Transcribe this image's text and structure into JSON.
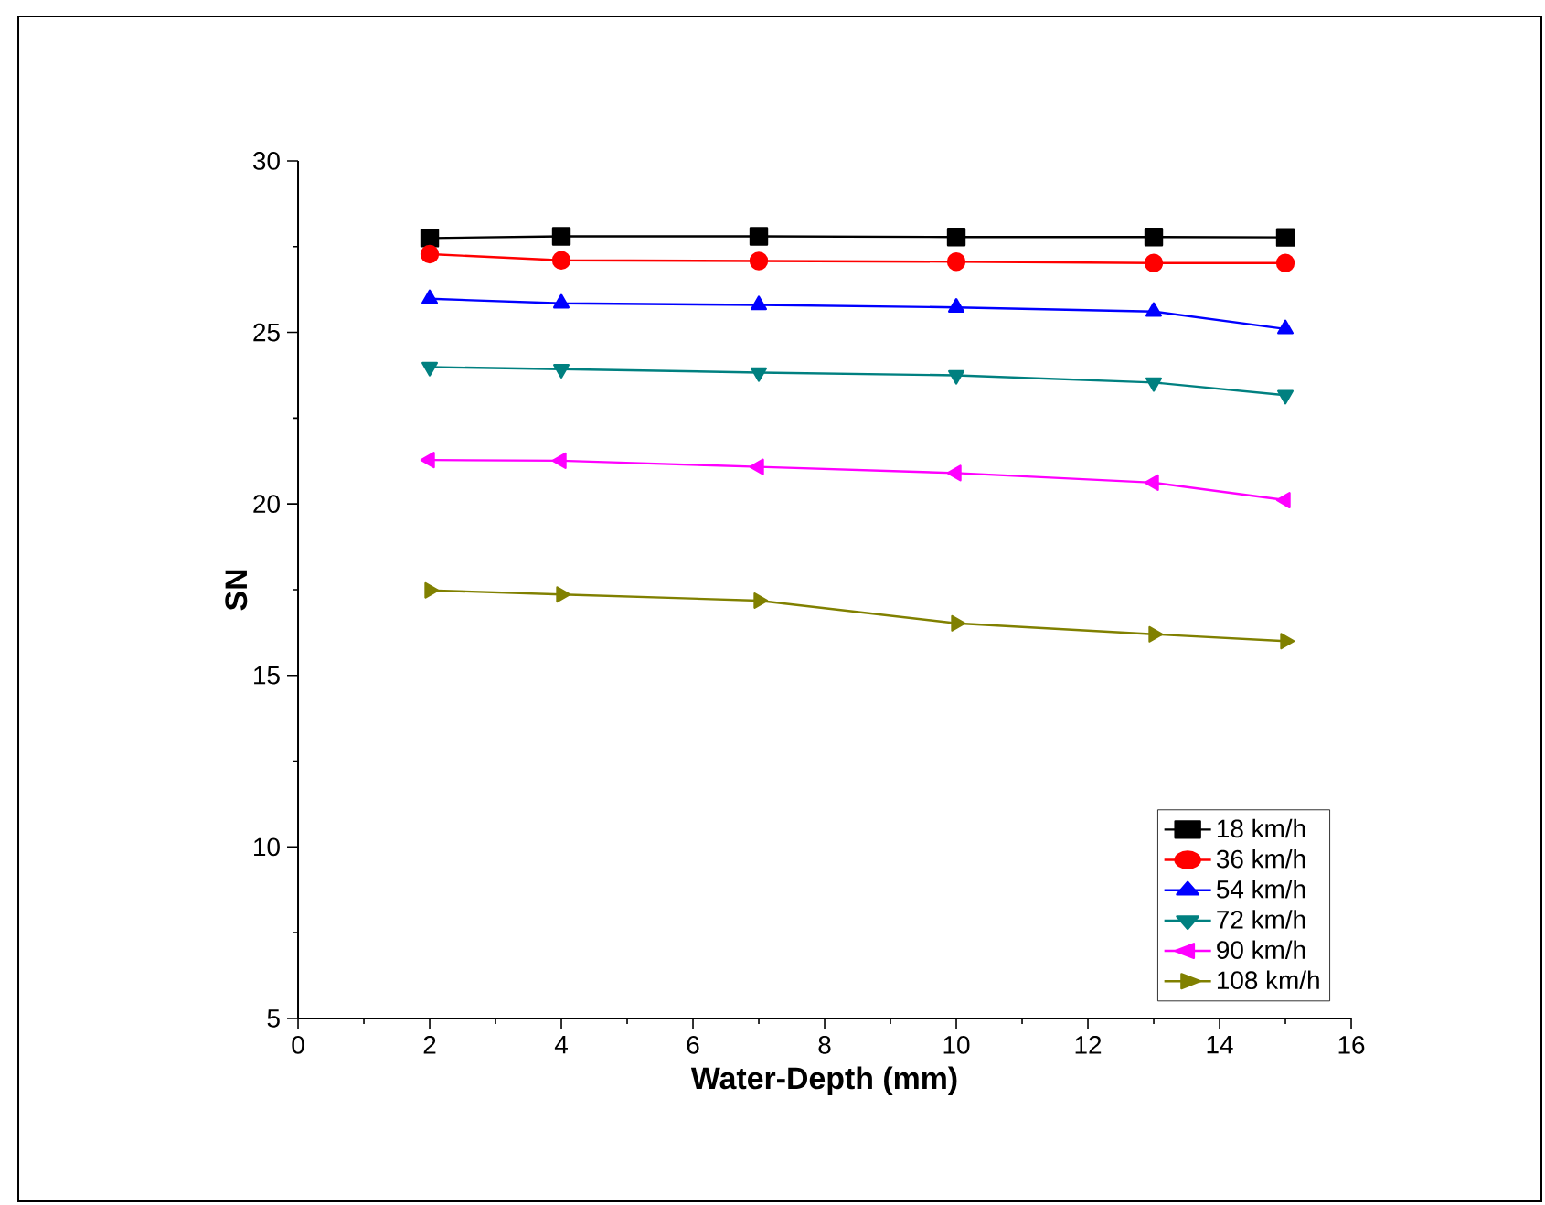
{
  "chart_data": {
    "type": "line",
    "xlabel": "Water-Depth (mm)",
    "ylabel": "SN",
    "x": [
      2,
      4,
      7,
      10,
      13,
      15
    ],
    "xlim": [
      0,
      16
    ],
    "xticks": [
      0,
      2,
      4,
      6,
      8,
      10,
      12,
      14,
      16
    ],
    "ylim": [
      5,
      30
    ],
    "yticks": [
      5,
      10,
      15,
      20,
      25,
      30
    ],
    "grid": false,
    "legend": "bottom right",
    "series": [
      {
        "name": "18 km/h",
        "color": "#000000",
        "marker": "square",
        "values": [
          27.75,
          27.8,
          27.8,
          27.78,
          27.78,
          27.77
        ]
      },
      {
        "name": "36 km/h",
        "color": "#ff0000",
        "marker": "circle",
        "values": [
          27.28,
          27.1,
          27.08,
          27.06,
          27.02,
          27.02
        ]
      },
      {
        "name": "54 km/h",
        "color": "#0000ff",
        "marker": "triangle",
        "values": [
          25.98,
          25.85,
          25.8,
          25.73,
          25.61,
          25.1
        ]
      },
      {
        "name": "72 km/h",
        "color": "#008080",
        "marker": "triangle-down",
        "values": [
          23.99,
          23.93,
          23.83,
          23.75,
          23.54,
          23.17
        ]
      },
      {
        "name": "90 km/h",
        "color": "#ff00ff",
        "marker": "triangle-left",
        "values": [
          21.28,
          21.26,
          21.08,
          20.9,
          20.62,
          20.11
        ]
      },
      {
        "name": "108 km/h",
        "color": "#808000",
        "marker": "triangle-right",
        "values": [
          17.48,
          17.36,
          17.18,
          16.52,
          16.2,
          16.0
        ]
      }
    ]
  }
}
